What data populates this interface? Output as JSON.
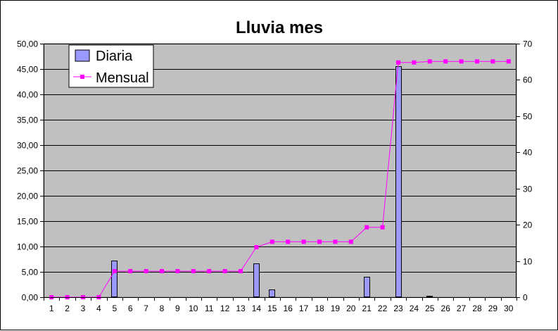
{
  "chart_data": {
    "type": "bar",
    "title": "Lluvia mes",
    "categories": [
      "1",
      "2",
      "3",
      "4",
      "5",
      "6",
      "7",
      "8",
      "9",
      "10",
      "11",
      "12",
      "13",
      "14",
      "15",
      "16",
      "17",
      "18",
      "19",
      "20",
      "21",
      "22",
      "23",
      "24",
      "25",
      "26",
      "27",
      "28",
      "29",
      "30"
    ],
    "series": [
      {
        "name": "Diaria",
        "type": "bar",
        "axis": "left",
        "color": "#9999FF",
        "values": [
          0,
          0,
          0,
          0,
          7.2,
          0,
          0,
          0,
          0,
          0,
          0,
          0,
          0,
          6.6,
          1.5,
          0,
          0,
          0,
          0,
          0,
          4.0,
          0,
          45.5,
          0,
          0.3,
          0,
          0,
          0,
          0,
          0
        ]
      },
      {
        "name": "Mensual",
        "type": "line",
        "axis": "right",
        "color": "#FF00FF",
        "values": [
          0,
          0,
          0,
          0,
          7.2,
          7.2,
          7.2,
          7.2,
          7.2,
          7.2,
          7.2,
          7.2,
          7.2,
          13.8,
          15.3,
          15.3,
          15.3,
          15.3,
          15.3,
          15.3,
          19.3,
          19.3,
          64.8,
          64.8,
          65.1,
          65.1,
          65.1,
          65.1,
          65.1,
          65.1
        ]
      }
    ],
    "y_left": {
      "min": 0,
      "max": 50,
      "ticks": [
        "0,00",
        "5,00",
        "10,00",
        "15,00",
        "20,00",
        "25,00",
        "30,00",
        "35,00",
        "40,00",
        "45,00",
        "50,00"
      ]
    },
    "y_right": {
      "min": 0,
      "max": 70,
      "ticks": [
        "0",
        "10",
        "20",
        "30",
        "40",
        "50",
        "60",
        "70"
      ]
    },
    "grid": true,
    "legend_position": "top-left",
    "plot_background": "#C0C0C0"
  }
}
